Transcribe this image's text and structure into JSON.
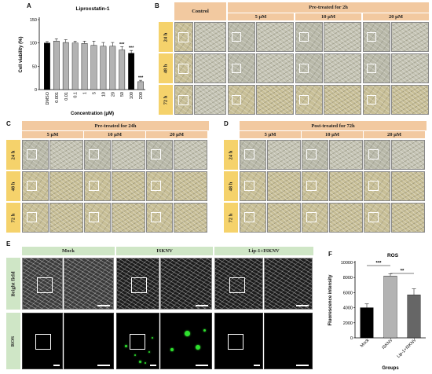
{
  "panels": {
    "A": {
      "letter": "A",
      "chart_data": {
        "type": "bar",
        "title": "Liproxstatin-1",
        "xlabel": "Concentration (μM)",
        "ylabel": "Cell viability (%)",
        "ylim": [
          0,
          150
        ],
        "yticks": [
          0,
          50,
          100,
          150
        ],
        "categories": [
          "DMSO",
          "0.001",
          "0.01",
          "0.1",
          "1",
          "5",
          "10",
          "20",
          "50",
          "100",
          "200"
        ],
        "values": [
          100,
          104,
          101,
          100,
          99,
          95,
          93,
          93,
          85,
          78,
          17
        ],
        "errors": [
          3,
          5,
          6,
          4,
          5,
          9,
          8,
          8,
          7,
          6,
          3
        ],
        "significance": [
          "",
          "",
          "",
          "",
          "",
          "",
          "",
          "",
          "***",
          "***",
          "***"
        ],
        "colors": [
          "#000000",
          "#b3b3b3",
          "#b3b3b3",
          "#b3b3b3",
          "#b3b3b3",
          "#b3b3b3",
          "#b3b3b3",
          "#b3b3b3",
          "#b3b3b3",
          "#000000",
          "#b3b3b3"
        ]
      }
    },
    "B": {
      "letter": "B",
      "control": "Control",
      "group_header": "Pre-treated for 2h",
      "doses": [
        "5 μM",
        "10 μM",
        "20 μM"
      ],
      "times": [
        "24 h",
        "48 h",
        "72 h"
      ]
    },
    "C": {
      "letter": "C",
      "group_header": "Pre-treated for 24h",
      "doses": [
        "5 μM",
        "10 μM",
        "20 μM"
      ],
      "times": [
        "24 h",
        "48 h",
        "72 h"
      ]
    },
    "D": {
      "letter": "D",
      "group_header": "Post-treated for 72h",
      "doses": [
        "5 μM",
        "10 μM",
        "20 μM"
      ],
      "times": [
        "24 h",
        "48 h",
        "72 h"
      ]
    },
    "E": {
      "letter": "E",
      "columns": [
        "Mock",
        "ISKNV",
        "Lip-1+ISKNV"
      ],
      "rows": [
        "Bright field",
        "ROS"
      ]
    },
    "F": {
      "letter": "F",
      "chart_data": {
        "type": "bar",
        "title": "ROS",
        "xlabel": "Groups",
        "ylabel": "Fluorescence intensity",
        "ylim": [
          0,
          10000
        ],
        "yticks": [
          0,
          2000,
          4000,
          6000,
          8000,
          10000
        ],
        "categories": [
          "Mock",
          "ISKNV",
          "Lip-1+ISKNV"
        ],
        "values": [
          4000,
          8200,
          5700
        ],
        "errors": [
          500,
          300,
          800
        ],
        "colors": [
          "#000000",
          "#b3b3b3",
          "#666666"
        ],
        "comparisons": [
          {
            "from": 0,
            "to": 1,
            "label": "***"
          },
          {
            "from": 1,
            "to": 2,
            "label": "**"
          }
        ]
      }
    }
  },
  "colors": {
    "header_orange": "#f2c9a0",
    "row_yellow": "#f5d26b",
    "header_green": "#cfe6c6",
    "ros_green": "#2ee02e"
  }
}
